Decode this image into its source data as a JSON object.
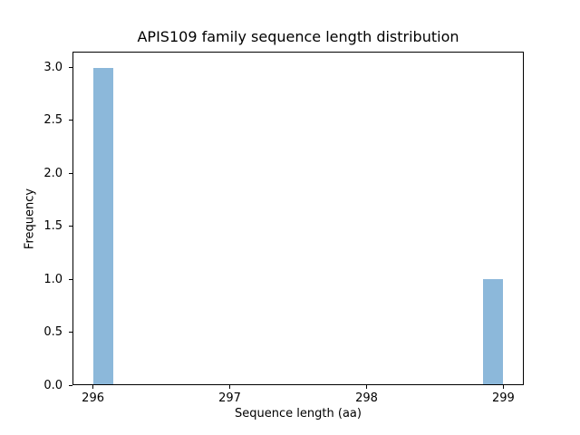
{
  "chart_data": {
    "type": "bar",
    "subtype": "histogram",
    "title": "APIS109 family sequence length distribution",
    "xlabel": "Sequence length (aa)",
    "ylabel": "Frequency",
    "categories": [
      296,
      299
    ],
    "values": [
      3,
      1
    ],
    "bins": [
      {
        "x_start": 296.0,
        "x_end": 296.15,
        "count": 3
      },
      {
        "x_start": 298.85,
        "x_end": 299.0,
        "count": 1
      }
    ],
    "x_ticks": [
      296,
      297,
      298,
      299
    ],
    "x_tick_labels": [
      "296",
      "297",
      "298",
      "299"
    ],
    "y_ticks": [
      0.0,
      0.5,
      1.0,
      1.5,
      2.0,
      2.5,
      3.0
    ],
    "y_tick_labels": [
      "0.0",
      "0.5",
      "1.0",
      "1.5",
      "2.0",
      "2.5",
      "3.0"
    ],
    "xlim": [
      295.85,
      299.15
    ],
    "ylim": [
      0,
      3.15
    ],
    "grid": false,
    "legend": null,
    "colors": {
      "bar_fill": "#8cb8da",
      "axis": "#000000",
      "background": "#ffffff"
    }
  }
}
